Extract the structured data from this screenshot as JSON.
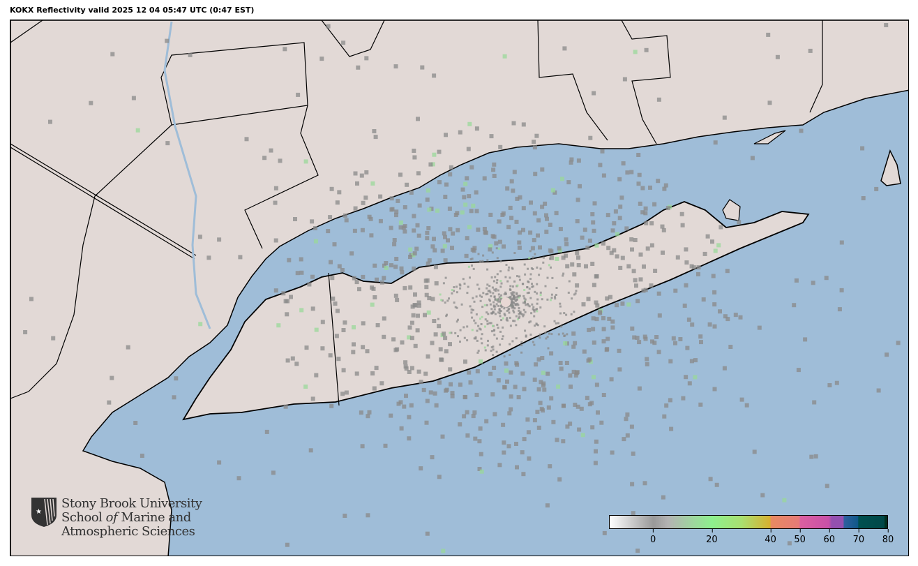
{
  "title": "KOKX Reflectivity valid 2025 12 04 05:47 UTC (0:47 EST)",
  "logo": {
    "line1": "Stony Brook University",
    "line2a": "School ",
    "line2b": "of",
    "line2c": " Marine and",
    "line3": "Atmospheric Sciences"
  },
  "colorbar": {
    "min": -15,
    "max": 80,
    "ticks": [
      "0",
      "20",
      "40",
      "50",
      "60",
      "70",
      "80"
    ],
    "tick_values": [
      0,
      20,
      40,
      50,
      60,
      70,
      80
    ]
  },
  "colors": {
    "water": "#9fbdd8",
    "land": "#e2d9d6",
    "echo": "#8a8a8a",
    "radar_site": "#e8d8d4"
  },
  "radar_site": "KOKX"
}
